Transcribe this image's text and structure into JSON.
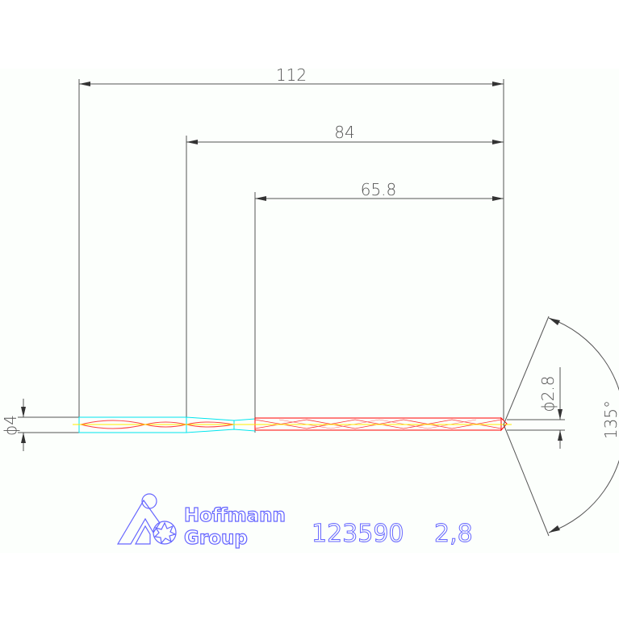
{
  "dimensions": {
    "overall_length": "112",
    "flute_to_tip": "84",
    "body_length": "65.8",
    "shank_diameter": "ϕ4",
    "drill_diameter": "ϕ2.8",
    "point_angle": "135°"
  },
  "logo": {
    "line1": "Hoffmann",
    "line2": "Group"
  },
  "part": {
    "number": "123590",
    "size": "2,8"
  },
  "colors": {
    "dimension": "#555555",
    "shank": "#00e5ee",
    "flute": "#ff0000",
    "axis": "#ffee00",
    "brand": "#6666ff"
  }
}
